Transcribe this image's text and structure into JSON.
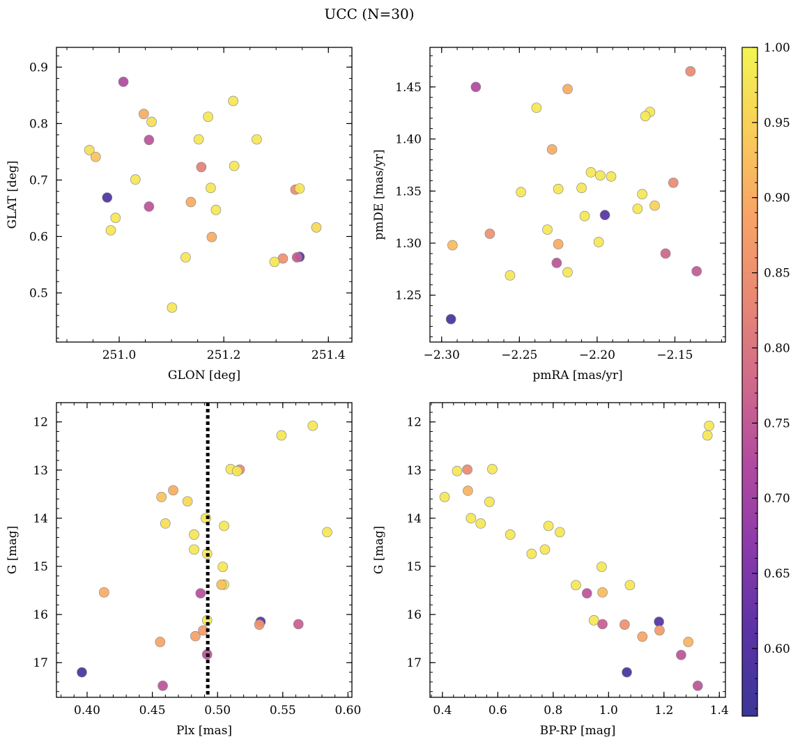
{
  "figure": {
    "title": "UCC (N=30)"
  },
  "colorbar": {
    "vmin": 0.555,
    "vmax": 1.0,
    "ticks": [
      0.6,
      0.65,
      0.7,
      0.75,
      0.8,
      0.85,
      0.9,
      0.95,
      1.0
    ],
    "tick_labels": [
      "0.60",
      "0.65",
      "0.70",
      "0.75",
      "0.80",
      "0.85",
      "0.90",
      "0.95",
      "1.00"
    ]
  },
  "chart_data": [
    {
      "id": "p1",
      "type": "scatter",
      "xlabel": "GLON [deg]",
      "ylabel": "GLAT [deg]",
      "xlim": [
        250.88,
        251.445
      ],
      "ylim": [
        0.413,
        0.935
      ],
      "invert_y": false,
      "xticks": [
        251.0,
        251.2,
        251.4
      ],
      "xtick_labels": [
        "251.0",
        "251.2",
        "251.4"
      ],
      "yticks": [
        0.5,
        0.6,
        0.7,
        0.8,
        0.9
      ],
      "ytick_labels": [
        "0.5",
        "0.6",
        "0.7",
        "0.8",
        "0.9"
      ],
      "xminor": 0.05,
      "yminor": 0.02,
      "points": [
        [
          251.008,
          0.874,
          0.72
        ],
        [
          251.047,
          0.817,
          0.9
        ],
        [
          251.062,
          0.803,
          0.97
        ],
        [
          250.943,
          0.753,
          0.97
        ],
        [
          250.955,
          0.741,
          0.93
        ],
        [
          251.057,
          0.771,
          0.74
        ],
        [
          251.218,
          0.84,
          0.98
        ],
        [
          251.17,
          0.812,
          0.98
        ],
        [
          251.152,
          0.772,
          0.98
        ],
        [
          251.263,
          0.772,
          0.98
        ],
        [
          251.157,
          0.723,
          0.82
        ],
        [
          251.22,
          0.725,
          0.98
        ],
        [
          251.031,
          0.701,
          0.98
        ],
        [
          250.977,
          0.669,
          0.59
        ],
        [
          251.175,
          0.686,
          0.98
        ],
        [
          251.337,
          0.683,
          0.84
        ],
        [
          251.345,
          0.685,
          0.98
        ],
        [
          251.137,
          0.661,
          0.9
        ],
        [
          251.057,
          0.653,
          0.74
        ],
        [
          251.185,
          0.647,
          0.98
        ],
        [
          250.993,
          0.633,
          0.98
        ],
        [
          251.377,
          0.616,
          0.96
        ],
        [
          250.984,
          0.611,
          0.98
        ],
        [
          251.177,
          0.599,
          0.9
        ],
        [
          251.127,
          0.563,
          0.98
        ],
        [
          251.313,
          0.561,
          0.85
        ],
        [
          251.345,
          0.564,
          0.6
        ],
        [
          251.34,
          0.563,
          0.76
        ],
        [
          251.297,
          0.555,
          0.98
        ],
        [
          251.101,
          0.474,
          0.98
        ]
      ]
    },
    {
      "id": "p2",
      "type": "scatter",
      "xlabel": "pmRA [mas/yr]",
      "ylabel": "pmDE [mas/yr]",
      "xlim": [
        -2.3075,
        -2.1175
      ],
      "ylim": [
        1.205,
        1.488
      ],
      "invert_y": false,
      "xticks": [
        -2.3,
        -2.25,
        -2.2,
        -2.15
      ],
      "xtick_labels": [
        "−2.30",
        "−2.25",
        "−2.20",
        "−2.15"
      ],
      "yticks": [
        1.25,
        1.3,
        1.35,
        1.4,
        1.45
      ],
      "ytick_labels": [
        "1.25",
        "1.30",
        "1.35",
        "1.40",
        "1.45"
      ],
      "xminor": 0.01,
      "yminor": 0.01,
      "points": [
        [
          -2.278,
          1.45,
          0.72
        ],
        [
          -2.219,
          1.448,
          0.9
        ],
        [
          -2.14,
          1.465,
          0.84
        ],
        [
          -2.239,
          1.43,
          0.98
        ],
        [
          -2.166,
          1.426,
          0.98
        ],
        [
          -2.169,
          1.422,
          0.98
        ],
        [
          -2.229,
          1.39,
          0.9
        ],
        [
          -2.204,
          1.368,
          0.98
        ],
        [
          -2.198,
          1.365,
          0.98
        ],
        [
          -2.191,
          1.364,
          0.98
        ],
        [
          -2.21,
          1.353,
          0.98
        ],
        [
          -2.225,
          1.352,
          0.98
        ],
        [
          -2.249,
          1.349,
          0.98
        ],
        [
          -2.171,
          1.347,
          0.98
        ],
        [
          -2.151,
          1.358,
          0.84
        ],
        [
          -2.163,
          1.336,
          0.95
        ],
        [
          -2.174,
          1.333,
          0.98
        ],
        [
          -2.208,
          1.326,
          0.98
        ],
        [
          -2.195,
          1.327,
          0.6
        ],
        [
          -2.232,
          1.313,
          0.98
        ],
        [
          -2.269,
          1.309,
          0.85
        ],
        [
          -2.293,
          1.298,
          0.92
        ],
        [
          -2.225,
          1.299,
          0.9
        ],
        [
          -2.199,
          1.301,
          0.98
        ],
        [
          -2.156,
          1.29,
          0.77
        ],
        [
          -2.226,
          1.281,
          0.74
        ],
        [
          -2.136,
          1.273,
          0.75
        ],
        [
          -2.219,
          1.272,
          0.98
        ],
        [
          -2.256,
          1.269,
          0.98
        ],
        [
          -2.294,
          1.227,
          0.57
        ]
      ]
    },
    {
      "id": "p3",
      "type": "scatter",
      "xlabel": "Plx [mas]",
      "ylabel": "G [mag]",
      "xlim": [
        0.3765,
        0.603
      ],
      "ylim": [
        11.6,
        17.72
      ],
      "invert_y": true,
      "xticks": [
        0.4,
        0.45,
        0.5,
        0.55,
        0.6
      ],
      "xtick_labels": [
        "0.40",
        "0.45",
        "0.50",
        "0.55",
        "0.60"
      ],
      "yticks": [
        12,
        13,
        14,
        15,
        16,
        17
      ],
      "ytick_labels": [
        "12",
        "13",
        "14",
        "15",
        "16",
        "17"
      ],
      "xminor": 0.01,
      "yminor": 0.2,
      "vline": {
        "x": 0.4925,
        "style": "dotted"
      },
      "points": [
        [
          0.573,
          12.08,
          0.98
        ],
        [
          0.549,
          12.28,
          0.98
        ],
        [
          0.51,
          12.98,
          0.98
        ],
        [
          0.517,
          12.99,
          0.84
        ],
        [
          0.515,
          13.02,
          0.98
        ],
        [
          0.466,
          13.42,
          0.9
        ],
        [
          0.457,
          13.56,
          0.93
        ],
        [
          0.477,
          13.65,
          0.96
        ],
        [
          0.491,
          14.0,
          0.98
        ],
        [
          0.46,
          14.11,
          0.97
        ],
        [
          0.505,
          14.16,
          0.98
        ],
        [
          0.584,
          14.29,
          0.98
        ],
        [
          0.482,
          14.34,
          0.98
        ],
        [
          0.482,
          14.65,
          0.98
        ],
        [
          0.492,
          14.74,
          0.98
        ],
        [
          0.504,
          15.01,
          0.98
        ],
        [
          0.505,
          15.38,
          0.98
        ],
        [
          0.503,
          15.38,
          0.93
        ],
        [
          0.413,
          15.54,
          0.9
        ],
        [
          0.487,
          15.56,
          0.73
        ],
        [
          0.492,
          16.12,
          0.98
        ],
        [
          0.533,
          16.15,
          0.6
        ],
        [
          0.532,
          16.21,
          0.86
        ],
        [
          0.562,
          16.2,
          0.76
        ],
        [
          0.489,
          16.33,
          0.87
        ],
        [
          0.483,
          16.45,
          0.88
        ],
        [
          0.456,
          16.57,
          0.89
        ],
        [
          0.492,
          16.83,
          0.74
        ],
        [
          0.396,
          17.2,
          0.58
        ],
        [
          0.458,
          17.48,
          0.74
        ]
      ]
    },
    {
      "id": "p4",
      "type": "scatter",
      "xlabel": "BP-RP [mag]",
      "ylabel": "G [mag]",
      "xlim": [
        0.355,
        1.422
      ],
      "ylim": [
        11.6,
        17.72
      ],
      "invert_y": true,
      "xticks": [
        0.4,
        0.6,
        0.8,
        1.0,
        1.2,
        1.4
      ],
      "xtick_labels": [
        "0.4",
        "0.6",
        "0.8",
        "1.0",
        "1.2",
        "1.4"
      ],
      "yticks": [
        12,
        13,
        14,
        15,
        16,
        17
      ],
      "ytick_labels": [
        "12",
        "13",
        "14",
        "15",
        "16",
        "17"
      ],
      "xminor": 0.04,
      "yminor": 0.2,
      "points": [
        [
          1.363,
          12.08,
          0.98
        ],
        [
          1.357,
          12.28,
          0.98
        ],
        [
          0.49,
          12.99,
          0.84
        ],
        [
          0.453,
          13.02,
          0.98
        ],
        [
          0.58,
          12.98,
          0.98
        ],
        [
          0.492,
          13.43,
          0.91
        ],
        [
          0.408,
          13.56,
          0.98
        ],
        [
          0.57,
          13.66,
          0.98
        ],
        [
          0.503,
          14.0,
          0.98
        ],
        [
          0.538,
          14.11,
          0.98
        ],
        [
          0.783,
          14.16,
          0.98
        ],
        [
          0.824,
          14.29,
          0.98
        ],
        [
          0.645,
          14.34,
          0.98
        ],
        [
          0.77,
          14.65,
          0.98
        ],
        [
          0.722,
          14.74,
          0.98
        ],
        [
          0.975,
          15.01,
          0.98
        ],
        [
          0.882,
          15.39,
          0.98
        ],
        [
          1.077,
          15.39,
          0.98
        ],
        [
          0.922,
          15.56,
          0.74
        ],
        [
          0.978,
          15.54,
          0.92
        ],
        [
          0.947,
          16.12,
          0.98
        ],
        [
          1.182,
          16.15,
          0.6
        ],
        [
          0.978,
          16.2,
          0.76
        ],
        [
          1.058,
          16.21,
          0.85
        ],
        [
          1.184,
          16.33,
          0.87
        ],
        [
          1.122,
          16.46,
          0.89
        ],
        [
          1.288,
          16.57,
          0.91
        ],
        [
          1.262,
          16.84,
          0.74
        ],
        [
          1.066,
          17.2,
          0.58
        ],
        [
          1.322,
          17.48,
          0.74
        ]
      ]
    }
  ]
}
